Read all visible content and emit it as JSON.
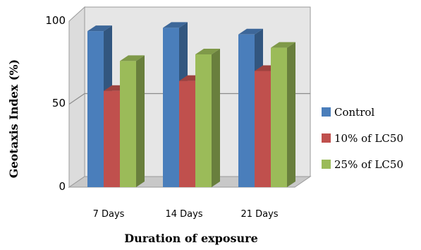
{
  "chart_data": {
    "type": "bar",
    "style": "3d-clustered-column",
    "categories": [
      "7 Days",
      "14 Days",
      "21 Days"
    ],
    "series": [
      {
        "name": "Control",
        "values": [
          94,
          96,
          92
        ],
        "color": "#4a7ebb"
      },
      {
        "name": "10% of LC50",
        "values": [
          58,
          64,
          70
        ],
        "color": "#c0504d"
      },
      {
        "name": "25% of LC50",
        "values": [
          76,
          80,
          84
        ],
        "color": "#9bbb59"
      }
    ],
    "xlabel": "Duration of exposure",
    "ylabel": "Geotaxis Index (%)",
    "ylim": [
      0,
      100
    ],
    "yticks": [
      "0",
      "50",
      "100"
    ],
    "grid": true,
    "legend_position": "right",
    "colors": {
      "wall": "#e6e6e6",
      "floor": "#c8c8c8",
      "gridline": "#8c8c8c"
    }
  }
}
